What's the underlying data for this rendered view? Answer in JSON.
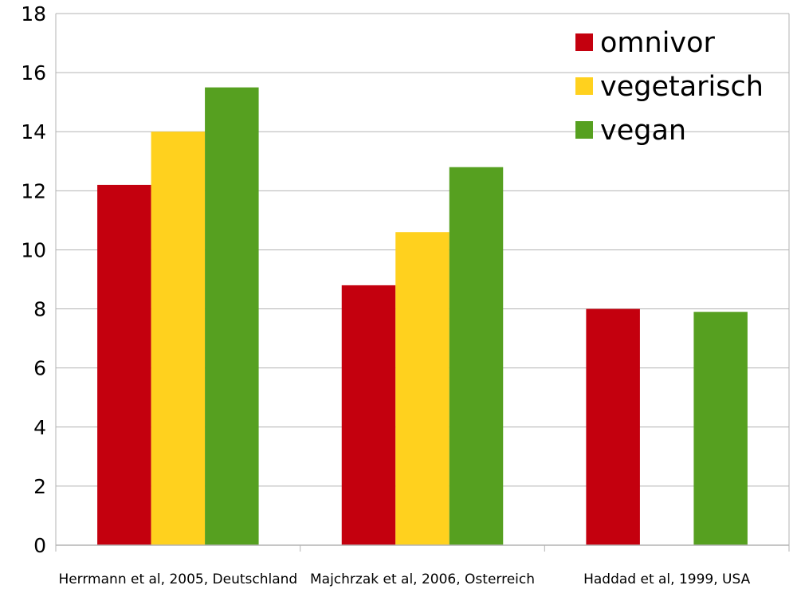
{
  "chart_data": {
    "type": "bar",
    "title": "",
    "xlabel": "",
    "ylabel": "",
    "ylim": [
      0,
      18
    ],
    "yticks": [
      0,
      2,
      4,
      6,
      8,
      10,
      12,
      14,
      16,
      18
    ],
    "grid": true,
    "legend_position": "top-right",
    "categories": [
      "Herrmann et al, 2005, Deutschland",
      "Majchrzak et al, 2006, Osterreich",
      "Haddad et al, 1999, USA"
    ],
    "series": [
      {
        "name": "omnivor",
        "color": "#c4000e",
        "values": [
          12.2,
          8.8,
          8.0
        ]
      },
      {
        "name": "vegetarisch",
        "color": "#ffd11e",
        "values": [
          14.0,
          10.6,
          null
        ]
      },
      {
        "name": "vegan",
        "color": "#56a020",
        "values": [
          15.5,
          12.8,
          7.9
        ]
      }
    ]
  }
}
